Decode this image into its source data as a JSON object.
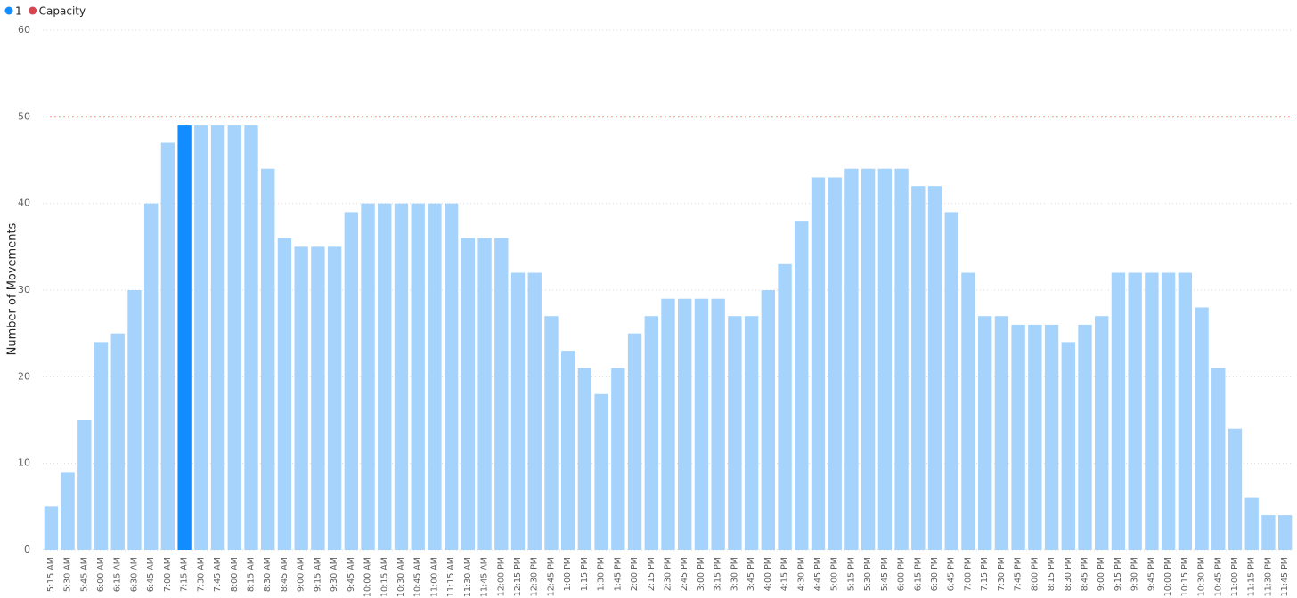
{
  "chart_data": {
    "type": "bar",
    "y_label": "Number of Movements",
    "categories": [
      "5:15 AM",
      "5:30 AM",
      "5:45 AM",
      "6:00 AM",
      "6:15 AM",
      "6:30 AM",
      "6:45 AM",
      "7:00 AM",
      "7:15 AM",
      "7:30 AM",
      "7:45 AM",
      "8:00 AM",
      "8:15 AM",
      "8:30 AM",
      "8:45 AM",
      "9:00 AM",
      "9:15 AM",
      "9:30 AM",
      "9:45 AM",
      "10:00 AM",
      "10:15 AM",
      "10:30 AM",
      "10:45 AM",
      "11:00 AM",
      "11:15 AM",
      "11:30 AM",
      "11:45 AM",
      "12:00 PM",
      "12:15 PM",
      "12:30 PM",
      "12:45 PM",
      "1:00 PM",
      "1:15 PM",
      "1:30 PM",
      "1:45 PM",
      "2:00 PM",
      "2:15 PM",
      "2:30 PM",
      "2:45 PM",
      "3:00 PM",
      "3:15 PM",
      "3:30 PM",
      "3:45 PM",
      "4:00 PM",
      "4:15 PM",
      "4:30 PM",
      "4:45 PM",
      "5:00 PM",
      "5:15 PM",
      "5:30 PM",
      "5:45 PM",
      "6:00 PM",
      "6:15 PM",
      "6:30 PM",
      "6:45 PM",
      "7:00 PM",
      "7:15 PM",
      "7:30 PM",
      "7:45 PM",
      "8:00 PM",
      "8:15 PM",
      "8:30 PM",
      "8:45 PM",
      "9:00 PM",
      "9:15 PM",
      "9:30 PM",
      "9:45 PM",
      "10:00 PM",
      "10:15 PM",
      "10:30 PM",
      "10:45 PM",
      "11:00 PM",
      "11:15 PM",
      "11:30 PM",
      "11:45 PM"
    ],
    "series": [
      {
        "name": "1",
        "color": "#118dff",
        "faded_color": "#a5d3fb",
        "highlight": "7:15 AM",
        "values": [
          5,
          9,
          15,
          24,
          25,
          30,
          40,
          47,
          49,
          49,
          49,
          49,
          49,
          44,
          36,
          35,
          35,
          35,
          39,
          40,
          40,
          40,
          40,
          40,
          40,
          36,
          36,
          36,
          32,
          32,
          27,
          23,
          21,
          18,
          21,
          25,
          27,
          29,
          29,
          29,
          29,
          27,
          27,
          30,
          33,
          38,
          43,
          43,
          44,
          44,
          44,
          44,
          42,
          42,
          39,
          32,
          27,
          27,
          26,
          26,
          26,
          24,
          26,
          27,
          32,
          32,
          32,
          32,
          32,
          28,
          21,
          14,
          6,
          4,
          4
        ]
      }
    ],
    "reference_lines": [
      {
        "name": "Capacity",
        "value": 50,
        "color": "#d64550"
      }
    ],
    "ylim": [
      0,
      60
    ],
    "yticks": [
      0,
      10,
      20,
      30,
      40,
      50,
      60
    ],
    "grid": true
  }
}
